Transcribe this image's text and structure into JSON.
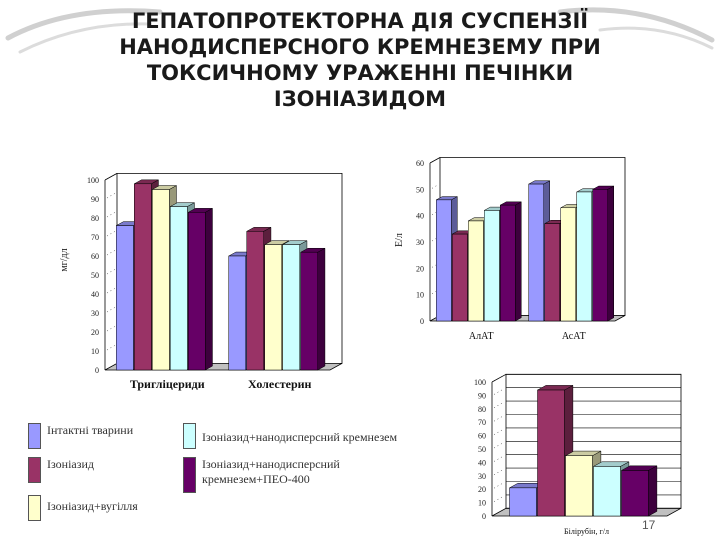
{
  "title_lines": [
    "ГЕПАТОПРОТЕКТОРНА ДІЯ СУСПЕНЗІЇ",
    "НАНОДИСПЕРСНОГО КРЕМНЕЗЕМУ ПРИ",
    "ТОКСИЧНОМУ УРАЖЕННІ ПЕЧІНКИ",
    "ІЗОНІАЗИДОМ"
  ],
  "page_number": "17",
  "colors": {
    "intact": "#9999ff",
    "isoniazid": "#993366",
    "coal": "#ffffcc",
    "nano": "#ccffff",
    "nano_peo": "#660066"
  },
  "legend": [
    {
      "key": "intact",
      "label": "Інтактні тварини"
    },
    {
      "key": "nano",
      "label": "Ізоніазид+нанодисперсний кремнезем"
    },
    {
      "key": "isoniazid",
      "label": "Ізоніазид"
    },
    {
      "key": "nano_peo",
      "label": "Ізоніазид+нанодисперсний кремнезем+ПЕО-400"
    },
    {
      "key": "coal",
      "label": "Ізоніазид+вугілля"
    }
  ],
  "chart_data": [
    {
      "type": "bar",
      "categories": [
        "Тригліцериди",
        "Холестерин"
      ],
      "ylabel": "мг/дл",
      "ylim": [
        0,
        100
      ],
      "yticks": [
        "0",
        "10",
        "20",
        "30",
        "40",
        "50",
        "60",
        "70",
        "80",
        "90",
        "100"
      ],
      "series": [
        {
          "name": "Інтактні тварини",
          "color_key": "intact",
          "values": [
            76,
            60
          ]
        },
        {
          "name": "Ізоніазид",
          "color_key": "isoniazid",
          "values": [
            98,
            73
          ]
        },
        {
          "name": "Ізоніазид+вугілля",
          "color_key": "coal",
          "values": [
            95,
            66
          ]
        },
        {
          "name": "Ізоніазид+нанодисперсний кремнезем",
          "color_key": "nano",
          "values": [
            86,
            66
          ]
        },
        {
          "name": "Ізоніазид+нанодисперсний кремнезем+ПЕО-400",
          "color_key": "nano_peo",
          "values": [
            83,
            62
          ]
        }
      ]
    },
    {
      "type": "bar",
      "categories": [
        "АлАТ",
        "АсАТ"
      ],
      "ylabel": "Е/л",
      "ylim": [
        0,
        60
      ],
      "yticks": [
        "0",
        "10",
        "20",
        "30",
        "40",
        "50",
        "60"
      ],
      "series": [
        {
          "name": "Інтактні тварини",
          "color_key": "intact",
          "values": [
            46,
            52
          ]
        },
        {
          "name": "Ізоніазид",
          "color_key": "isoniazid",
          "values": [
            33,
            37
          ]
        },
        {
          "name": "Ізоніазид+вугілля",
          "color_key": "coal",
          "values": [
            38,
            43
          ]
        },
        {
          "name": "Ізоніазид+нанодисперсний кремнезем",
          "color_key": "nano",
          "values": [
            42,
            49
          ]
        },
        {
          "name": "Ізоніазид+нанодисперсний кремнезем+ПЕО-400",
          "color_key": "nano_peo",
          "values": [
            44,
            50
          ]
        }
      ]
    },
    {
      "type": "bar",
      "categories": [
        "Білірубін, г/л"
      ],
      "ylabel": "",
      "ylim": [
        0,
        100
      ],
      "yticks": [
        "0",
        "10",
        "20",
        "30",
        "40",
        "50",
        "60",
        "70",
        "80",
        "90",
        "100"
      ],
      "series": [
        {
          "name": "Інтактні тварини",
          "color_key": "intact",
          "values": [
            21
          ]
        },
        {
          "name": "Ізоніазид",
          "color_key": "isoniazid",
          "values": [
            94
          ]
        },
        {
          "name": "Ізоніазид+вугілля",
          "color_key": "coal",
          "values": [
            45
          ]
        },
        {
          "name": "Ізоніазид+нанодисперсний кремнезем",
          "color_key": "nano",
          "values": [
            37
          ]
        },
        {
          "name": "Ізоніазид+нанодисперсний кремнезем+ПЕО-400",
          "color_key": "nano_peo",
          "values": [
            34
          ]
        }
      ]
    }
  ]
}
